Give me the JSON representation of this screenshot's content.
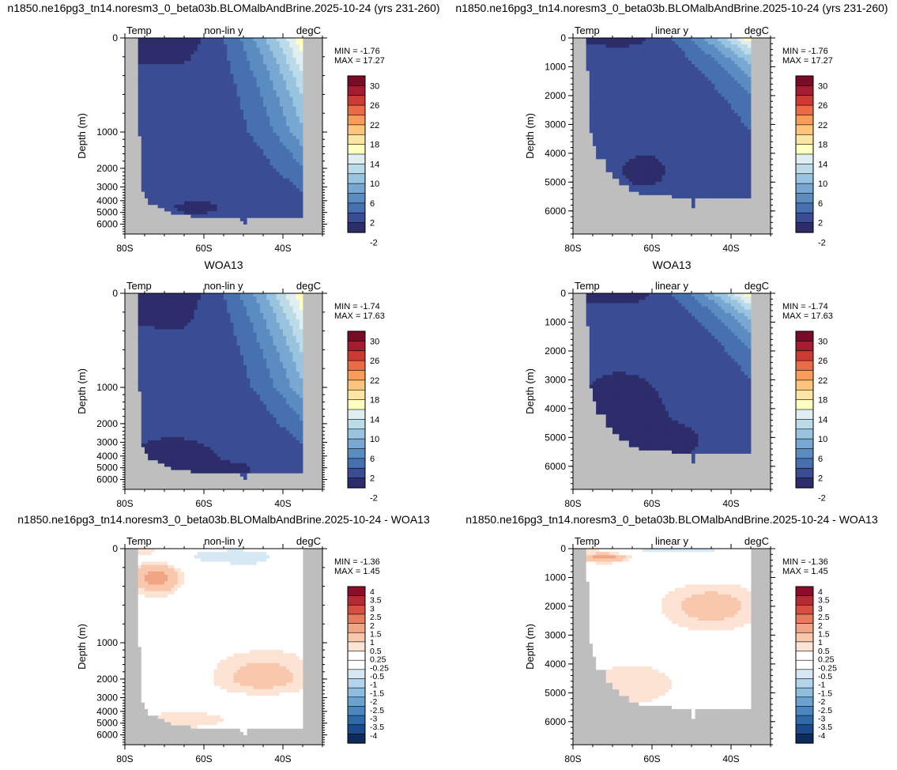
{
  "colors": {
    "land": "#bebebe",
    "temp_scale": [
      "#2c2d6a",
      "#3a4c94",
      "#4670b0",
      "#5a8cc2",
      "#78a8d1",
      "#99c3df",
      "#bcdbe9",
      "#dfeef0",
      "#ffffbf",
      "#fde5a3",
      "#fcc57b",
      "#f89c5b",
      "#ea6b45",
      "#cc3b33",
      "#a51b2f",
      "#780b25"
    ],
    "diff_scale": [
      "#0d2b5f",
      "#1a4a8a",
      "#2e6aa8",
      "#4a86bf",
      "#6aa2d0",
      "#8ebedf",
      "#b3d4ea",
      "#d6e8f3",
      "#ffffff",
      "#ffffff",
      "#fde3d4",
      "#f9c7ac",
      "#f2a584",
      "#e67c5e",
      "#d35042",
      "#b42b33",
      "#8c0d28"
    ]
  },
  "chart_data": [
    {
      "id": "p1",
      "type": "heatmap",
      "title": "n1850.ne16pg3_tn14.noresm3_0_beta03b.BLOMalbAndBrine.2025-10-24 (yrs 231-260)",
      "left_label": "Temp",
      "center_label": "non-lin y",
      "right_label": "degC",
      "ylabel": "Depth (m)",
      "yscale": "non-lin",
      "xticks": [
        "80S",
        "60S",
        "40S"
      ],
      "yticks": [
        "0",
        "1000",
        "2000",
        "3000",
        "4000",
        "5000",
        "6000"
      ],
      "min_label": "MIN = -1.76",
      "max_label": "MAX = 17.27",
      "colorbar": "temp",
      "colorbar_labels": [
        "30",
        "26",
        "22",
        "18",
        "14",
        "10",
        "6",
        "2",
        "-2"
      ],
      "field": "model"
    },
    {
      "id": "p2",
      "type": "heatmap",
      "title": "n1850.ne16pg3_tn14.noresm3_0_beta03b.BLOMalbAndBrine.2025-10-24 (yrs 231-260)",
      "left_label": "Temp",
      "center_label": "linear y",
      "right_label": "degC",
      "ylabel": "Depth (m)",
      "yscale": "linear",
      "xticks": [
        "80S",
        "60S",
        "40S"
      ],
      "yticks": [
        "0",
        "1000",
        "2000",
        "3000",
        "4000",
        "5000",
        "6000"
      ],
      "min_label": "MIN = -1.76",
      "max_label": "MAX = 17.27",
      "colorbar": "temp",
      "colorbar_labels": [
        "30",
        "26",
        "22",
        "18",
        "14",
        "10",
        "6",
        "2",
        "-2"
      ],
      "field": "model"
    },
    {
      "id": "p3",
      "type": "heatmap",
      "title": "WOA13",
      "left_label": "Temp",
      "center_label": "non-lin y",
      "right_label": "degC",
      "ylabel": "Depth (m)",
      "yscale": "non-lin",
      "xticks": [
        "80S",
        "60S",
        "40S"
      ],
      "yticks": [
        "0",
        "1000",
        "2000",
        "3000",
        "4000",
        "5000",
        "6000"
      ],
      "min_label": "MIN = -1.74",
      "max_label": "MAX = 17.63",
      "colorbar": "temp",
      "colorbar_labels": [
        "30",
        "26",
        "22",
        "18",
        "14",
        "10",
        "6",
        "2",
        "-2"
      ],
      "field": "obs"
    },
    {
      "id": "p4",
      "type": "heatmap",
      "title": "WOA13",
      "left_label": "Temp",
      "center_label": "linear y",
      "right_label": "degC",
      "ylabel": "Depth (m)",
      "yscale": "linear",
      "xticks": [
        "80S",
        "60S",
        "40S"
      ],
      "yticks": [
        "0",
        "1000",
        "2000",
        "3000",
        "4000",
        "5000",
        "6000"
      ],
      "min_label": "MIN = -1.74",
      "max_label": "MAX = 17.63",
      "colorbar": "temp",
      "colorbar_labels": [
        "30",
        "26",
        "22",
        "18",
        "14",
        "10",
        "6",
        "2",
        "-2"
      ],
      "field": "obs"
    },
    {
      "id": "p5",
      "type": "heatmap",
      "title": "n1850.ne16pg3_tn14.noresm3_0_beta03b.BLOMalbAndBrine.2025-10-24 - WOA13",
      "left_label": "Temp",
      "center_label": "non-lin y",
      "right_label": "degC",
      "ylabel": "Depth (m)",
      "yscale": "non-lin",
      "xticks": [
        "80S",
        "60S",
        "40S"
      ],
      "yticks": [
        "0",
        "1000",
        "2000",
        "3000",
        "4000",
        "5000",
        "6000"
      ],
      "min_label": "MIN = -1.36",
      "max_label": "MAX =  1.45",
      "colorbar": "diff",
      "colorbar_labels": [
        "4",
        "3.5",
        "3",
        "2.5",
        "2",
        "1.5",
        "1",
        "0.5",
        "0.25",
        "-0.25",
        "-0.5",
        "-1",
        "-1.5",
        "-2",
        "-2.5",
        "-3",
        "-3.5",
        "-4"
      ],
      "field": "diff"
    },
    {
      "id": "p6",
      "type": "heatmap",
      "title": "n1850.ne16pg3_tn14.noresm3_0_beta03b.BLOMalbAndBrine.2025-10-24 - WOA13",
      "left_label": "Temp",
      "center_label": "linear y",
      "right_label": "degC",
      "ylabel": "Depth (m)",
      "yscale": "linear",
      "xticks": [
        "80S",
        "60S",
        "40S"
      ],
      "yticks": [
        "0",
        "1000",
        "2000",
        "3000",
        "4000",
        "5000",
        "6000"
      ],
      "min_label": "MIN = -1.36",
      "max_label": "MAX =  1.45",
      "colorbar": "diff",
      "colorbar_labels": [
        "4",
        "3.5",
        "3",
        "2.5",
        "2",
        "1.5",
        "1",
        "0.5",
        "0.25",
        "-0.25",
        "-0.5",
        "-1",
        "-1.5",
        "-2",
        "-2.5",
        "-3",
        "-3.5",
        "-4"
      ],
      "field": "diff"
    }
  ]
}
